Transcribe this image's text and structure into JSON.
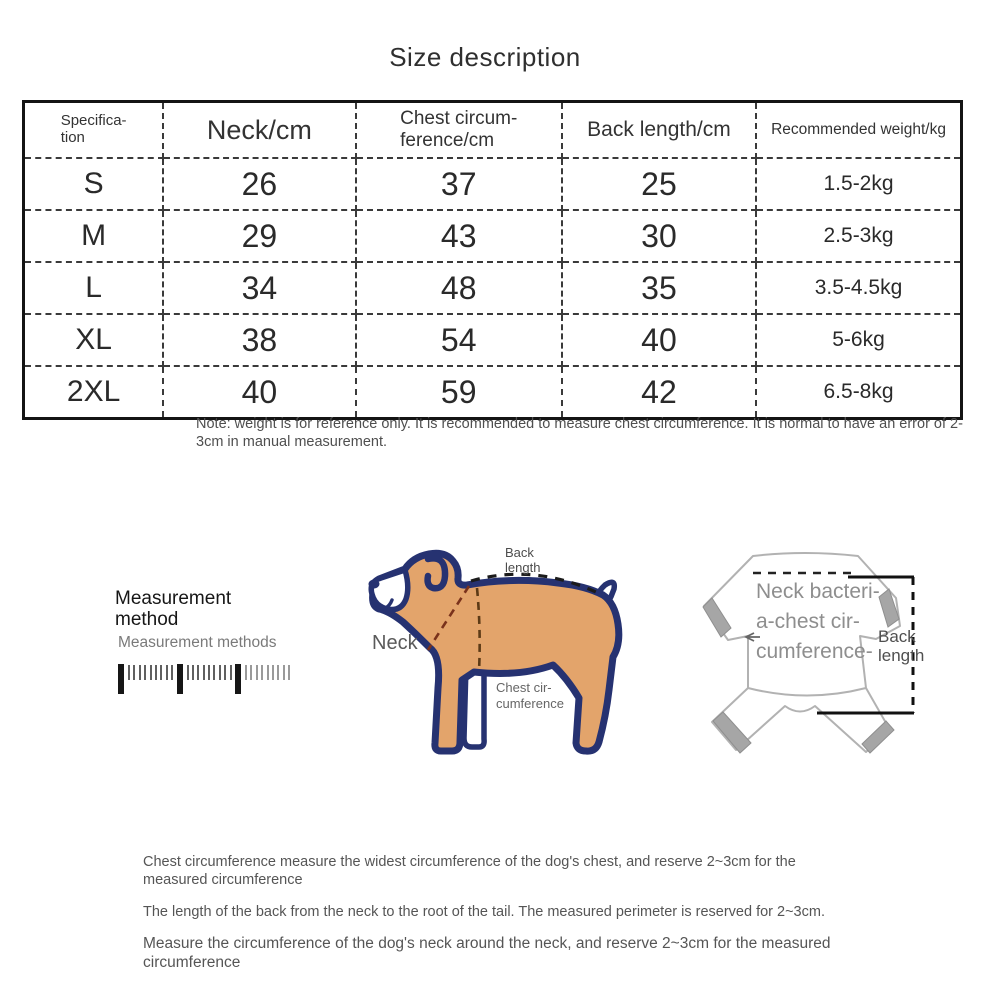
{
  "title": "Size description",
  "table": {
    "headers": [
      "Specifica-\ntion",
      "Neck/cm",
      "Chest circum-\nference/cm",
      "Back length/cm",
      "Recommended weight/kg"
    ],
    "rows": [
      [
        "S",
        "26",
        "37",
        "25",
        "1.5-2kg"
      ],
      [
        "M",
        "29",
        "43",
        "30",
        "2.5-3kg"
      ],
      [
        "L",
        "34",
        "48",
        "35",
        "3.5-4.5kg"
      ],
      [
        "XL",
        "38",
        "54",
        "40",
        "5-6kg"
      ],
      [
        "2XL",
        "40",
        "59",
        "42",
        "6.5-8kg"
      ]
    ],
    "note": "Note: weight is for reference only. It is recommended to measure chest circumference. It is normal to have an error of 2-3cm in manual measurement."
  },
  "measurement_section": {
    "heading": "Measurement method",
    "subheading": "Measurement methods"
  },
  "dog_diagram": {
    "back_length_label": "Back\nlength",
    "neck_label": "Neck",
    "chest_label": "Chest cir-\ncumference"
  },
  "garment_diagram": {
    "overlay_label": "Neck bacteri-\na-chest cir-\ncumference-",
    "back_length_label": "Back\nlength"
  },
  "footnotes": [
    "Chest circumference measure the widest circumference of the dog's chest, and reserve 2~3cm for the measured circumference",
    "The length of the back from the neck to the root of the tail. The measured perimeter is reserved for 2~3cm.",
    "Measure the circumference of the dog's neck around the neck, and reserve 2~3cm for the measured circumference"
  ],
  "colors": {
    "dog_body": "#e3a46b",
    "dog_outline": "#263271",
    "garment_outline": "#b2b2b2",
    "neck_dash": "#7a321b",
    "chest_dash": "#5c3a16",
    "bracket": "#1a1a1a"
  }
}
